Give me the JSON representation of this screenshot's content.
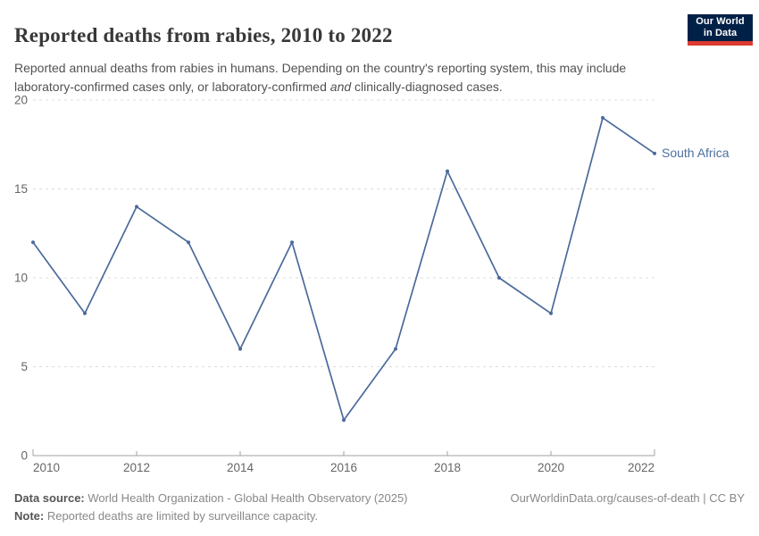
{
  "header": {
    "title": "Reported deaths from rabies, 2010 to 2022",
    "logo": {
      "line1": "Our World",
      "line2": "in Data",
      "bg_color": "#002147",
      "accent_color": "#dc3a32"
    }
  },
  "subtitle": {
    "part1": "Reported annual deaths from rabies in humans. Depending on the country's reporting system, this may include laboratory-confirmed cases only, or laboratory-confirmed ",
    "italic_word": "and",
    "part2": " clinically-diagnosed cases."
  },
  "chart_data": {
    "type": "line",
    "title": "Reported deaths from rabies, 2010 to 2022",
    "x": [
      2010,
      2011,
      2012,
      2013,
      2014,
      2015,
      2016,
      2017,
      2018,
      2019,
      2020,
      2021,
      2022
    ],
    "series": [
      {
        "name": "South Africa",
        "values": [
          12,
          8,
          14,
          12,
          6,
          12,
          2,
          6,
          16,
          10,
          8,
          19,
          17
        ],
        "color": "#4b6a9b",
        "label_color": "#4c6f9f"
      }
    ],
    "xlabel": "",
    "ylabel": "",
    "ylim": [
      0,
      20
    ],
    "yticks": [
      0,
      5,
      10,
      15,
      20
    ],
    "xticks": [
      2010,
      2012,
      2014,
      2016,
      2018,
      2020,
      2022
    ],
    "grid": "horizontal-dashed",
    "legend_position": "end-of-line",
    "colors": {
      "grid": "#dcdcdc",
      "axis": "#a1a1a1",
      "tick_text": "#666666"
    }
  },
  "footer": {
    "datasource_label": "Data source:",
    "datasource_text": " World Health Organization - Global Health Observatory (2025)",
    "rights": "OurWorldinData.org/causes-of-death | CC BY",
    "note_label": "Note:",
    "note_text": " Reported deaths are limited by surveillance capacity."
  }
}
